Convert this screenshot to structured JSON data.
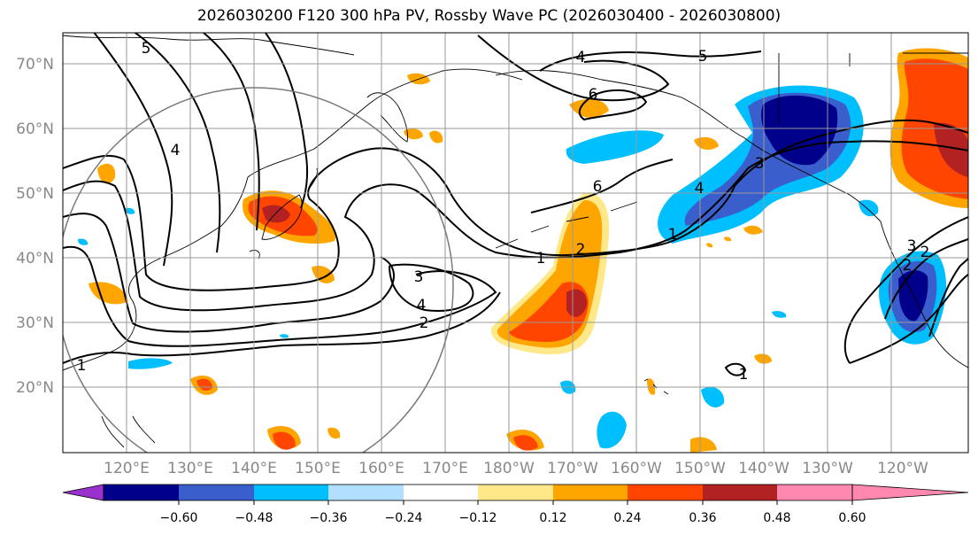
{
  "title": "2026030200 F120 300 hPa PV, Rossby Wave PC (2026030400 - 2026030800)",
  "lat_labels": [
    "70°N",
    "60°N",
    "50°N",
    "40°N",
    "30°N",
    "20°N"
  ],
  "lon_labels": [
    "120°E",
    "130°E",
    "140°E",
    "150°E",
    "160°E",
    "170°E",
    "180°W",
    "170°W",
    "160°W",
    "150°W",
    "140°W",
    "130°W",
    "120°W"
  ],
  "colorbar": {
    "colors": [
      "#9932cc",
      "#00008b",
      "#3a5fcd",
      "#00bfff",
      "#b2dfff",
      "#ffffff",
      "#ffe88a",
      "#ffa500",
      "#ff4500",
      "#b22222",
      "#ff88b0"
    ],
    "tick_labels": [
      "−0.60",
      "−0.48",
      "−0.36",
      "−0.24",
      "−0.12",
      "0.12",
      "0.24",
      "0.36",
      "0.48",
      "0.60"
    ]
  },
  "contour_labels": [
    "1",
    "2",
    "3",
    "4",
    "5",
    "6",
    "1",
    "2",
    "3",
    "4",
    "6",
    "3",
    "4",
    "2",
    "1",
    "2",
    "1",
    "4",
    "5"
  ],
  "colors": {
    "grid": "#999999",
    "axis_text": "#888888",
    "coast": "#000000"
  }
}
